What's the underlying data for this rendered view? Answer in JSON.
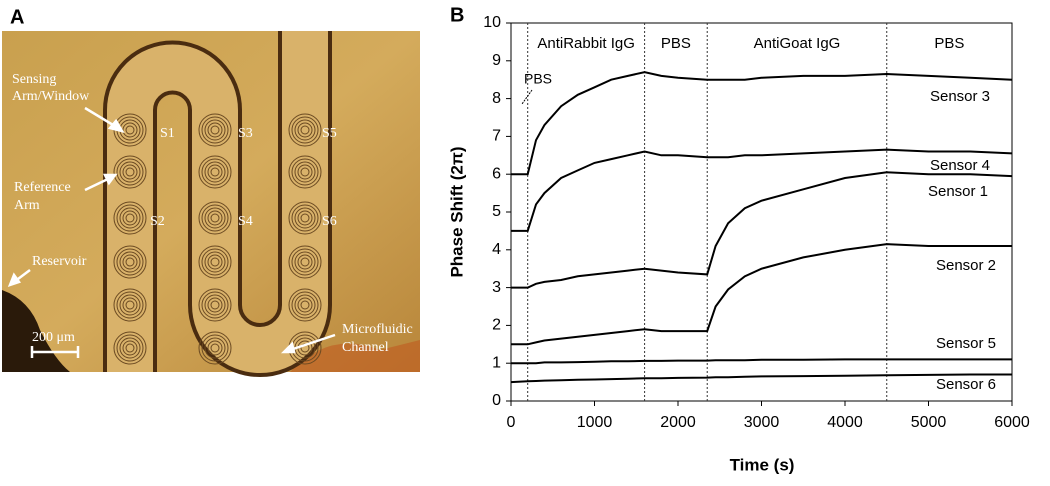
{
  "panel_a": {
    "label": "A",
    "sensing": [
      "Sensing",
      "Arm/Window"
    ],
    "reference": [
      "Reference",
      "Arm"
    ],
    "reservoir": "Reservoir",
    "scale": "200 μm",
    "channel": [
      "Microfluidic",
      "Channel"
    ],
    "sensors": [
      "S1",
      "S2",
      "S3",
      "S4",
      "S5",
      "S6"
    ]
  },
  "chart_data": {
    "type": "line",
    "panel_label": "B",
    "x_label": "Time (s)",
    "y_label": "Phase Shift (2π)",
    "xlim": [
      0,
      6000
    ],
    "xticks": [
      0,
      1000,
      2000,
      3000,
      4000,
      5000,
      6000
    ],
    "ylim": [
      0,
      10
    ],
    "yticks": [
      0,
      1,
      2,
      3,
      4,
      5,
      6,
      7,
      8,
      9,
      10
    ],
    "phase_boundaries": [
      200,
      1600,
      2350,
      4500
    ],
    "phases": [
      "AntiRabbit IgG",
      "PBS",
      "AntiGoat IgG",
      "PBS"
    ],
    "initial_phase": "PBS",
    "x": [
      0,
      200,
      300,
      400,
      600,
      800,
      1000,
      1200,
      1400,
      1600,
      1800,
      2000,
      2350,
      2450,
      2600,
      2800,
      3000,
      3500,
      4000,
      4500,
      5000,
      5500,
      6000
    ],
    "series": [
      {
        "name": "Sensor 3",
        "color": "#000000",
        "values": [
          6.0,
          6.0,
          6.9,
          7.3,
          7.8,
          8.1,
          8.3,
          8.5,
          8.6,
          8.7,
          8.6,
          8.55,
          8.5,
          8.5,
          8.5,
          8.5,
          8.55,
          8.6,
          8.6,
          8.65,
          8.6,
          8.55,
          8.5
        ]
      },
      {
        "name": "Sensor 4",
        "color": "#000000",
        "values": [
          4.5,
          4.5,
          5.2,
          5.5,
          5.9,
          6.1,
          6.3,
          6.4,
          6.5,
          6.6,
          6.5,
          6.5,
          6.45,
          6.45,
          6.45,
          6.5,
          6.5,
          6.55,
          6.6,
          6.65,
          6.6,
          6.6,
          6.55
        ]
      },
      {
        "name": "Sensor 1",
        "color": "#000000",
        "values": [
          3.0,
          3.0,
          3.1,
          3.15,
          3.2,
          3.3,
          3.35,
          3.4,
          3.45,
          3.5,
          3.45,
          3.4,
          3.35,
          4.1,
          4.7,
          5.1,
          5.3,
          5.6,
          5.9,
          6.05,
          6.0,
          6.0,
          5.95
        ]
      },
      {
        "name": "Sensor 2",
        "color": "#000000",
        "values": [
          1.5,
          1.5,
          1.55,
          1.6,
          1.65,
          1.7,
          1.75,
          1.8,
          1.85,
          1.9,
          1.85,
          1.85,
          1.85,
          2.5,
          2.95,
          3.3,
          3.5,
          3.8,
          4.0,
          4.15,
          4.1,
          4.1,
          4.1
        ]
      },
      {
        "name": "Sensor 5",
        "color": "#000000",
        "values": [
          1.0,
          1.0,
          1.0,
          1.02,
          1.02,
          1.03,
          1.04,
          1.05,
          1.05,
          1.06,
          1.06,
          1.07,
          1.07,
          1.08,
          1.08,
          1.08,
          1.09,
          1.09,
          1.1,
          1.1,
          1.1,
          1.1,
          1.1
        ]
      },
      {
        "name": "Sensor 6",
        "color": "#000000",
        "values": [
          0.5,
          0.52,
          0.53,
          0.54,
          0.55,
          0.56,
          0.57,
          0.58,
          0.59,
          0.6,
          0.6,
          0.61,
          0.62,
          0.63,
          0.63,
          0.64,
          0.65,
          0.66,
          0.67,
          0.68,
          0.69,
          0.7,
          0.7
        ]
      }
    ]
  }
}
